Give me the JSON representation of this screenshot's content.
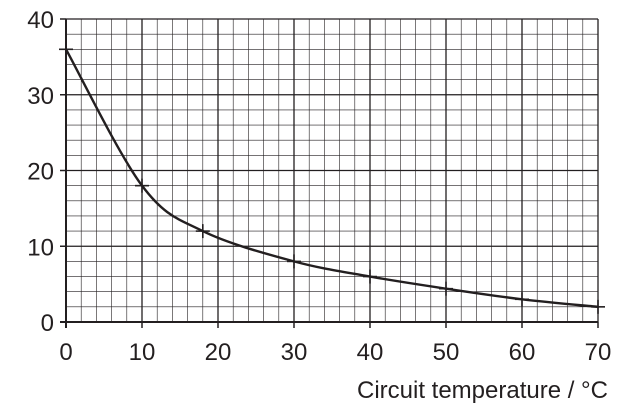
{
  "chart_data": {
    "type": "line",
    "title": "",
    "xlabel": "Circuit temperature / °C",
    "ylabel": "",
    "xlim": [
      0,
      70
    ],
    "ylim": [
      0,
      40
    ],
    "x_ticks": [
      "0",
      "10",
      "20",
      "30",
      "40",
      "50",
      "60",
      "70"
    ],
    "y_ticks": [
      "0",
      "10",
      "20",
      "30",
      "40"
    ],
    "x_minor_step": 2,
    "y_minor_step": 2,
    "grid": true,
    "legend": "none",
    "series": [
      {
        "x": [
          0,
          10,
          18,
          30,
          40,
          50,
          60,
          70
        ],
        "values": [
          36,
          18,
          12,
          8,
          6,
          4.4,
          3,
          2
        ],
        "marker": "cross",
        "line": "smooth"
      }
    ],
    "colors": {
      "line": "#231f20",
      "grid": "#231f20",
      "text": "#231f20"
    }
  }
}
